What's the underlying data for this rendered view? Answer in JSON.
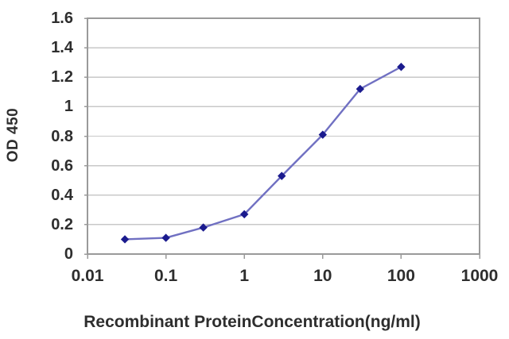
{
  "chart_data": {
    "type": "line",
    "title": "",
    "xlabel": "Recombinant ProteinConcentration(ng/ml)",
    "ylabel": "OD 450",
    "x_scale": "log",
    "x": [
      0.03,
      0.1,
      0.3,
      1,
      3,
      10,
      30,
      100
    ],
    "y": [
      0.1,
      0.11,
      0.18,
      0.27,
      0.53,
      0.81,
      1.12,
      1.27
    ],
    "xlim": [
      0.01,
      1000
    ],
    "ylim": [
      0,
      1.6
    ],
    "x_tick_labels": [
      "0.01",
      "0.1",
      "1",
      "10",
      "100",
      "1000"
    ],
    "x_tick_values": [
      0.01,
      0.1,
      1,
      10,
      100,
      1000
    ],
    "y_tick_labels": [
      "0",
      "0.2",
      "0.4",
      "0.6",
      "0.8",
      "1",
      "1.2",
      "1.4",
      "1.6"
    ],
    "y_tick_values": [
      0,
      0.2,
      0.4,
      0.6,
      0.8,
      1,
      1.2,
      1.4,
      1.6
    ],
    "grid": "horizontal",
    "legend": "none",
    "marker": "diamond",
    "colors": {
      "line": "#7070c2",
      "marker": "#1b1b8e",
      "grid": "#c8c8c8",
      "frame": "#9a9a9a",
      "text": "#2e2e2e"
    }
  }
}
